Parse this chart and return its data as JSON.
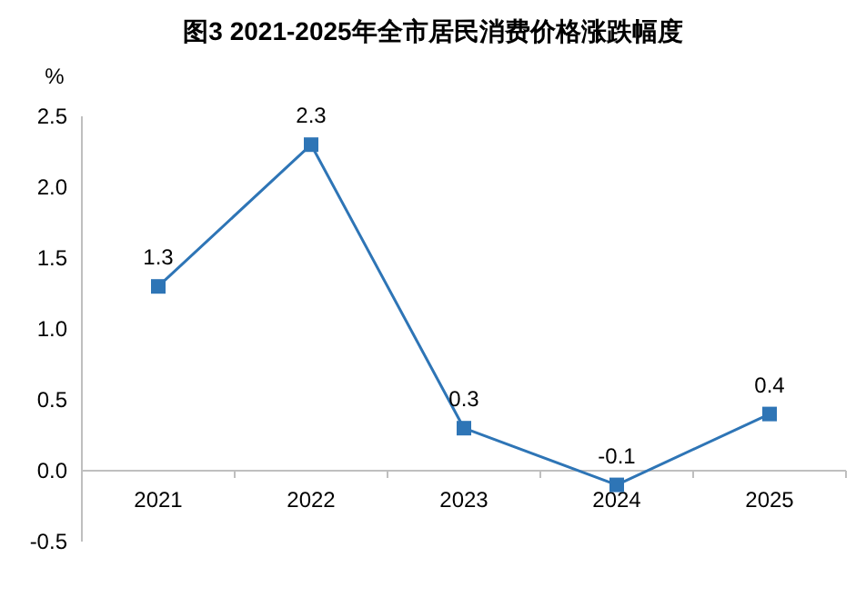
{
  "chart_data": {
    "type": "line",
    "title": "图3 2021-2025年全市居民消费价格涨跌幅度",
    "ylabel": "%",
    "categories": [
      "2021",
      "2022",
      "2023",
      "2024",
      "2025"
    ],
    "series": [
      {
        "color": "#2e75b6",
        "values": [
          1.3,
          2.3,
          0.3,
          -0.1,
          0.4
        ]
      }
    ],
    "ylim": [
      -0.5,
      2.5
    ],
    "yticks": [
      -0.5,
      {
        "value": 0,
        "label": "0.0"
      },
      0.5,
      {
        "value": 1,
        "label": "1.0"
      },
      1.5,
      {
        "value": 2,
        "label": "2.0"
      },
      2.5
    ],
    "data_labels": true,
    "marker": "square",
    "line_style": "solid"
  }
}
